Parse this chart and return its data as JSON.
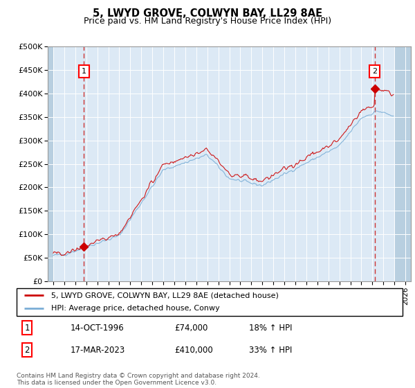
{
  "title": "5, LWYD GROVE, COLWYN BAY, LL29 8AE",
  "subtitle": "Price paid vs. HM Land Registry's House Price Index (HPI)",
  "xlim": [
    1993.5,
    2026.5
  ],
  "ylim": [
    0,
    500000
  ],
  "yticks": [
    0,
    50000,
    100000,
    150000,
    200000,
    250000,
    300000,
    350000,
    400000,
    450000,
    500000
  ],
  "ytick_labels": [
    "£0",
    "£50K",
    "£100K",
    "£150K",
    "£200K",
    "£250K",
    "£300K",
    "£350K",
    "£400K",
    "£450K",
    "£500K"
  ],
  "xticks": [
    1994,
    1995,
    1996,
    1997,
    1998,
    1999,
    2000,
    2001,
    2002,
    2003,
    2004,
    2005,
    2006,
    2007,
    2008,
    2009,
    2010,
    2011,
    2012,
    2013,
    2014,
    2015,
    2016,
    2017,
    2018,
    2019,
    2020,
    2021,
    2022,
    2023,
    2024,
    2025,
    2026
  ],
  "plot_bg_color": "#dce9f5",
  "grid_color": "#ffffff",
  "red_line_color": "#cc0000",
  "blue_line_color": "#7aaed6",
  "marker_color": "#cc0000",
  "marker1_x": 1996.79,
  "marker1_y": 74000,
  "marker2_x": 2023.21,
  "marker2_y": 410000,
  "legend_line1": "5, LWYD GROVE, COLWYN BAY, LL29 8AE (detached house)",
  "legend_line2": "HPI: Average price, detached house, Conwy",
  "annotation1_label": "1",
  "annotation1_date": "14-OCT-1996",
  "annotation1_price": "£74,000",
  "annotation1_hpi": "18% ↑ HPI",
  "annotation2_label": "2",
  "annotation2_date": "17-MAR-2023",
  "annotation2_price": "£410,000",
  "annotation2_hpi": "33% ↑ HPI",
  "footer": "Contains HM Land Registry data © Crown copyright and database right 2024.\nThis data is licensed under the Open Government Licence v3.0."
}
